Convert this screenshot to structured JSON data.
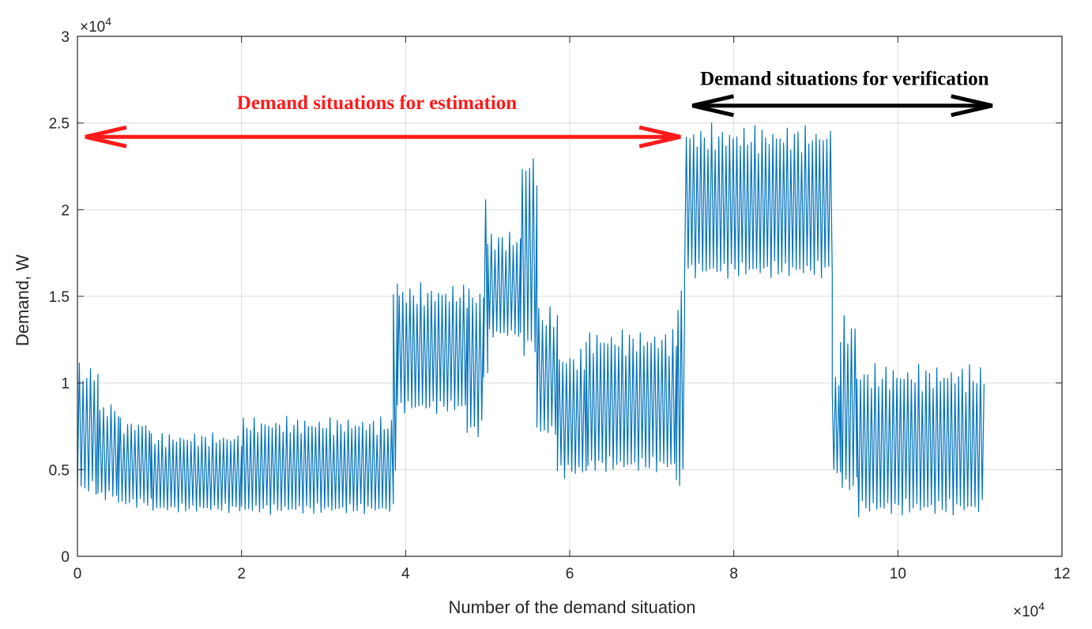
{
  "chart_data": {
    "type": "line",
    "title": "",
    "xlabel": "Number of the demand situation",
    "ylabel": "Demand, W",
    "xlim": [
      0,
      120000
    ],
    "ylim": [
      0,
      30000
    ],
    "x_ticks": [
      0,
      20000,
      40000,
      60000,
      80000,
      100000,
      120000
    ],
    "y_ticks": [
      0,
      5000,
      10000,
      15000,
      20000,
      25000,
      30000
    ],
    "x_tick_labels": [
      "0",
      "2",
      "4",
      "6",
      "8",
      "10",
      "12"
    ],
    "y_tick_labels": [
      "0",
      "0.5",
      "1",
      "1.5",
      "2",
      "2.5",
      "3"
    ],
    "x_exponent": {
      "base": "×10",
      "power": "4"
    },
    "y_exponent": {
      "base": "×10",
      "power": "4"
    },
    "grid": true,
    "series_color": "#0072BD",
    "series": [
      {
        "name": "Demand",
        "segments": [
          {
            "x_start": 0,
            "x_end": 2500,
            "low": 3500,
            "high": 11200
          },
          {
            "x_start": 2500,
            "x_end": 5000,
            "low": 3200,
            "high": 9000
          },
          {
            "x_start": 5000,
            "x_end": 9000,
            "low": 2800,
            "high": 8000
          },
          {
            "x_start": 9000,
            "x_end": 20000,
            "low": 2500,
            "high": 7200
          },
          {
            "x_start": 20000,
            "x_end": 38500,
            "low": 2400,
            "high": 8100
          },
          {
            "x_start": 38500,
            "x_end": 39000,
            "low": 4800,
            "high": 16800
          },
          {
            "x_start": 39000,
            "x_end": 47500,
            "low": 8200,
            "high": 15800
          },
          {
            "x_start": 47500,
            "x_end": 49500,
            "low": 6800,
            "high": 15800
          },
          {
            "x_start": 49500,
            "x_end": 50000,
            "low": 10000,
            "high": 21800
          },
          {
            "x_start": 50000,
            "x_end": 54000,
            "low": 12500,
            "high": 18800
          },
          {
            "x_start": 54000,
            "x_end": 56000,
            "low": 11500,
            "high": 23600
          },
          {
            "x_start": 56000,
            "x_end": 58500,
            "low": 6800,
            "high": 14500
          },
          {
            "x_start": 58500,
            "x_end": 62000,
            "low": 4500,
            "high": 12000
          },
          {
            "x_start": 62000,
            "x_end": 73000,
            "low": 4800,
            "high": 13200
          },
          {
            "x_start": 73000,
            "x_end": 74000,
            "low": 3700,
            "high": 15800
          },
          {
            "x_start": 74000,
            "x_end": 92000,
            "low": 16000,
            "high": 25000
          },
          {
            "x_start": 92000,
            "x_end": 93000,
            "low": 4500,
            "high": 10500
          },
          {
            "x_start": 93000,
            "x_end": 95000,
            "low": 3500,
            "high": 14000
          },
          {
            "x_start": 95000,
            "x_end": 110500,
            "low": 2300,
            "high": 11200
          }
        ]
      }
    ],
    "annotations": [
      {
        "text": "Demand situations for estimation",
        "color": "#ff1a1a",
        "arrow_x": [
          0,
          73500
        ],
        "arrow_y": 24200,
        "text_anchor_x": 36500,
        "text_y": 25800
      },
      {
        "text": "Demand situations for verification",
        "color": "#000000",
        "arrow_x": [
          74000,
          111500
        ],
        "arrow_y": 26000,
        "text_anchor_x": 93500,
        "text_y": 27200
      }
    ]
  }
}
